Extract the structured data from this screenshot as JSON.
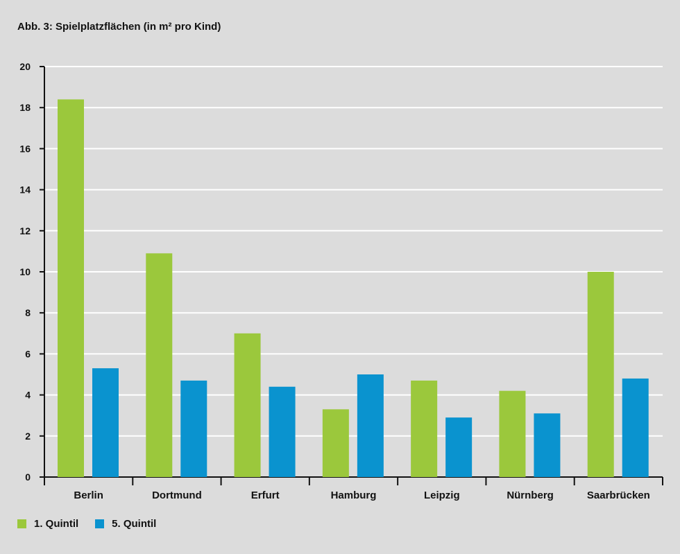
{
  "title": "Abb. 3: Spielplatzflächen (in m² pro Kind)",
  "chart_data": {
    "type": "bar",
    "title": "Abb. 3: Spielplatzflächen (in m² pro Kind)",
    "categories": [
      "Berlin",
      "Dortmund",
      "Erfurt",
      "Hamburg",
      "Leipzig",
      "Nürnberg",
      "Saarbrücken"
    ],
    "series": [
      {
        "name": "1. Quintil",
        "color": "#9bc83c",
        "values": [
          18.4,
          10.9,
          7.0,
          3.3,
          4.7,
          4.2,
          10.0
        ]
      },
      {
        "name": "5. Quintil",
        "color": "#0a93cf",
        "values": [
          5.3,
          4.7,
          4.4,
          5.0,
          2.9,
          3.1,
          4.8
        ]
      }
    ],
    "ylim": [
      0,
      20
    ],
    "yticks": [
      0,
      2,
      4,
      6,
      8,
      10,
      12,
      14,
      16,
      18,
      20
    ],
    "grid": true,
    "legend_position": "bottom-left"
  },
  "legend": [
    {
      "label": "1. Quintil",
      "color": "#9bc83c"
    },
    {
      "label": "5. Quintil",
      "color": "#0a93cf"
    }
  ]
}
